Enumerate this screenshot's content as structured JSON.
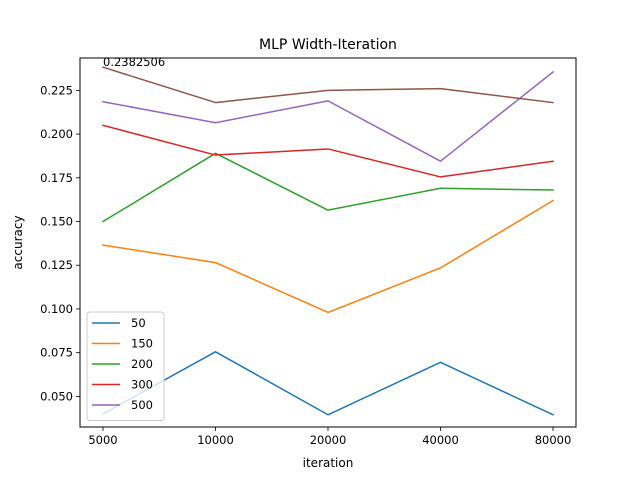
{
  "chart_data": {
    "type": "line",
    "title": "MLP Width-Iteration",
    "xlabel": "iteration",
    "ylabel": "accuracy",
    "categories": [
      "5000",
      "10000",
      "20000",
      "40000",
      "80000"
    ],
    "ylim": [
      0.0325,
      0.2435
    ],
    "yticks": [
      0.05,
      0.075,
      0.1,
      0.125,
      0.15,
      0.175,
      0.2,
      0.225
    ],
    "ytick_labels": [
      "0.050",
      "0.075",
      "0.100",
      "0.125",
      "0.150",
      "0.175",
      "0.200",
      "0.225"
    ],
    "grid": false,
    "legend_position": "lower-left",
    "series": [
      {
        "name": "50",
        "color": "#1f77b4",
        "values": [
          0.04,
          0.0755,
          0.0395,
          0.0695,
          0.0395
        ]
      },
      {
        "name": "150",
        "color": "#ff7f0e",
        "values": [
          0.1365,
          0.1265,
          0.098,
          0.1235,
          0.162
        ]
      },
      {
        "name": "200",
        "color": "#2ca02c",
        "values": [
          0.15,
          0.189,
          0.1565,
          0.169,
          0.168
        ]
      },
      {
        "name": "300",
        "color": "#d62728",
        "values": [
          0.205,
          0.188,
          0.1915,
          0.1755,
          0.1845
        ]
      },
      {
        "name": "500",
        "color": "#9467bd",
        "values": [
          0.2185,
          0.2065,
          0.219,
          0.1845,
          0.2355
        ]
      },
      {
        "name": "",
        "color": "#8c564b",
        "values": [
          0.2382506,
          0.218,
          0.225,
          0.226,
          0.218
        ]
      }
    ],
    "annotation": {
      "text": "0.2382506",
      "series_index": 5,
      "point_index": 0
    }
  }
}
